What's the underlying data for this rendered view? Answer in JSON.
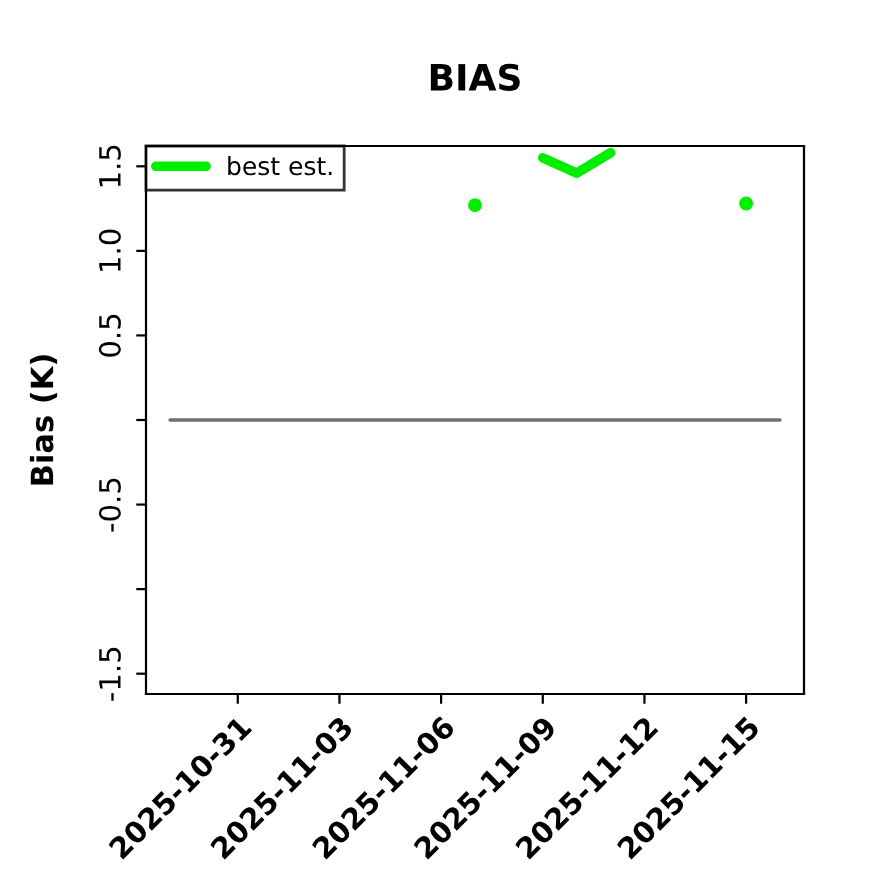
{
  "chart_data": {
    "type": "line",
    "title": "BIAS",
    "ylabel": "Bias (K)",
    "series": [
      {
        "name": "best est.",
        "color": "#00ee00",
        "x": [
          "2025-11-07",
          "2025-11-08",
          "2025-11-09",
          "2025-11-10",
          "2025-11-11",
          "2025-11-12",
          "2025-11-13",
          "2025-11-14",
          "2025-11-15"
        ],
        "values": [
          1.27,
          null,
          1.55,
          1.46,
          1.58,
          null,
          null,
          null,
          1.28
        ]
      },
      {
        "color": "#707070",
        "x": [
          "2025-10-29",
          "2025-11-16"
        ],
        "values": [
          0,
          0
        ]
      }
    ],
    "xlim": [
      "2025-10-28T07:00",
      "2025-11-16T17:00"
    ],
    "xticks": [
      {
        "value": "2025-10-31",
        "label": "2025-10-31"
      },
      {
        "value": "2025-11-03",
        "label": "2025-11-03"
      },
      {
        "value": "2025-11-06",
        "label": "2025-11-06"
      },
      {
        "value": "2025-11-09",
        "label": "2025-11-09"
      },
      {
        "value": "2025-11-12",
        "label": "2025-11-12"
      },
      {
        "value": "2025-11-15",
        "label": "2025-11-15"
      }
    ],
    "ylim": [
      -1.62,
      1.62
    ],
    "yticks": [
      {
        "value": -1.5,
        "label": "-1.5"
      },
      {
        "value": -1.0,
        "label": null
      },
      {
        "value": -0.5,
        "label": "-0.5"
      },
      {
        "value": 0,
        "label": null
      },
      {
        "value": 0.5,
        "label": "0.5"
      },
      {
        "value": 1.0,
        "label": "1.0"
      },
      {
        "value": 1.5,
        "label": "1.5"
      }
    ],
    "legend": "top left",
    "grid": false,
    "line_style": "solid",
    "marker": "none"
  }
}
